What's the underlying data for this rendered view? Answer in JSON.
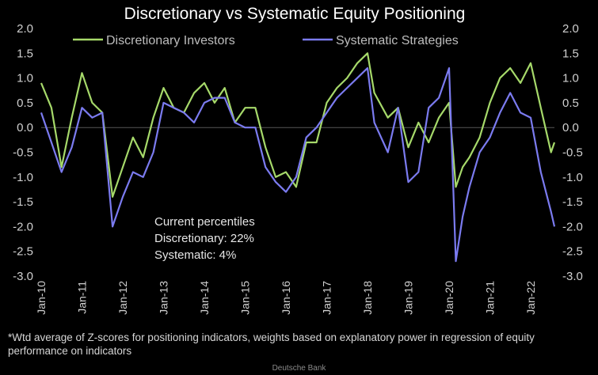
{
  "chart_data": {
    "type": "line",
    "title": "Discretionary  vs Systematic Equity Positioning",
    "ylim": [
      -3.0,
      2.0
    ],
    "y_ticks": [
      "2.0",
      "1.5",
      "1.0",
      "0.5",
      "0.0",
      "-0.5",
      "-1.0",
      "-1.5",
      "-2.0",
      "-2.5",
      "-3.0"
    ],
    "x_ticks": [
      "Jan-10",
      "Jan-11",
      "Jan-12",
      "Jan-13",
      "Jan-14",
      "Jan-15",
      "Jan-16",
      "Jan-17",
      "Jan-18",
      "Jan-19",
      "Jan-20",
      "Jan-21",
      "Jan-22"
    ],
    "x_range": [
      "2010-01",
      "2022-08"
    ],
    "legend_position": "top",
    "series": [
      {
        "name": "Discretionary Investors",
        "color": "#a6d96a",
        "x": [
          "2010-01",
          "2010-04",
          "2010-07",
          "2010-10",
          "2011-01",
          "2011-04",
          "2011-07",
          "2011-10",
          "2012-01",
          "2012-04",
          "2012-07",
          "2012-10",
          "2013-01",
          "2013-04",
          "2013-07",
          "2013-10",
          "2014-01",
          "2014-04",
          "2014-07",
          "2014-10",
          "2015-01",
          "2015-04",
          "2015-07",
          "2015-10",
          "2016-01",
          "2016-04",
          "2016-07",
          "2016-10",
          "2017-01",
          "2017-04",
          "2017-07",
          "2017-10",
          "2018-01",
          "2018-03",
          "2018-07",
          "2018-10",
          "2019-01",
          "2019-04",
          "2019-07",
          "2019-10",
          "2020-01",
          "2020-03",
          "2020-05",
          "2020-07",
          "2020-10",
          "2021-01",
          "2021-04",
          "2021-07",
          "2021-10",
          "2022-01",
          "2022-04",
          "2022-07",
          "2022-08"
        ],
        "y": [
          0.9,
          0.4,
          -0.8,
          0.2,
          1.1,
          0.5,
          0.3,
          -1.4,
          -0.8,
          -0.2,
          -0.6,
          0.2,
          0.8,
          0.4,
          0.3,
          0.7,
          0.9,
          0.5,
          0.8,
          0.1,
          0.4,
          0.4,
          -0.4,
          -1.0,
          -0.9,
          -1.2,
          -0.3,
          -0.3,
          0.5,
          0.8,
          1.0,
          1.3,
          1.5,
          0.7,
          0.2,
          0.4,
          -0.4,
          0.1,
          -0.3,
          0.2,
          0.5,
          -1.2,
          -0.8,
          -0.6,
          -0.2,
          0.5,
          1.0,
          1.2,
          0.9,
          1.3,
          0.4,
          -0.5,
          -0.3
        ]
      },
      {
        "name": "Systematic Strategies",
        "color": "#7b7bf0",
        "x": [
          "2010-01",
          "2010-04",
          "2010-07",
          "2010-10",
          "2011-01",
          "2011-04",
          "2011-07",
          "2011-10",
          "2012-01",
          "2012-04",
          "2012-07",
          "2012-10",
          "2013-01",
          "2013-04",
          "2013-07",
          "2013-10",
          "2014-01",
          "2014-04",
          "2014-07",
          "2014-10",
          "2015-01",
          "2015-04",
          "2015-07",
          "2015-10",
          "2016-01",
          "2016-04",
          "2016-07",
          "2016-10",
          "2017-01",
          "2017-04",
          "2017-07",
          "2017-10",
          "2018-01",
          "2018-03",
          "2018-07",
          "2018-10",
          "2019-01",
          "2019-04",
          "2019-07",
          "2019-10",
          "2020-01",
          "2020-03",
          "2020-05",
          "2020-07",
          "2020-10",
          "2021-01",
          "2021-04",
          "2021-07",
          "2021-10",
          "2022-01",
          "2022-04",
          "2022-07",
          "2022-08"
        ],
        "y": [
          0.3,
          -0.3,
          -0.9,
          -0.4,
          0.4,
          0.2,
          0.3,
          -2.0,
          -1.4,
          -0.9,
          -1.0,
          -0.5,
          0.5,
          0.4,
          0.3,
          0.1,
          0.5,
          0.6,
          0.6,
          0.1,
          0.0,
          0.0,
          -0.8,
          -1.1,
          -1.3,
          -1.0,
          -0.2,
          0.0,
          0.3,
          0.6,
          0.8,
          1.0,
          1.2,
          0.1,
          -0.5,
          0.4,
          -1.1,
          -0.9,
          0.4,
          0.6,
          1.2,
          -2.7,
          -1.8,
          -1.2,
          -0.5,
          -0.2,
          0.3,
          0.7,
          0.3,
          0.2,
          -0.9,
          -1.7,
          -2.0
        ]
      }
    ],
    "annotation": [
      "Current percentiles",
      "Discretionary: 22%",
      "Systematic: 4%"
    ]
  },
  "footnote": "*Wtd average of Z-scores for positioning indicators, weights based on explanatory power in regression of equity performance on indicators",
  "source": "Deutsche Bank"
}
